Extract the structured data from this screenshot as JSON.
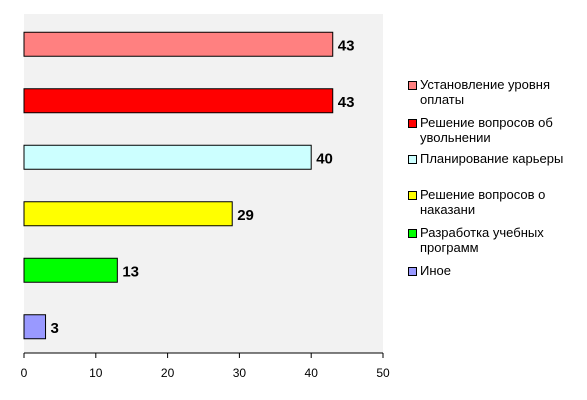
{
  "chart_data": {
    "type": "bar",
    "orientation": "horizontal",
    "categories": [
      "Установление уровня оплаты",
      "Решение вопросов об увольнении",
      "Планирование карьеры",
      "Решение вопросов о наказани",
      "Разработка учебных программ",
      "Иное"
    ],
    "values": [
      43,
      43,
      40,
      29,
      13,
      3
    ],
    "colors": [
      "#ff8080",
      "#ff0000",
      "#ccffff",
      "#ffff00",
      "#00ff00",
      "#9999ff"
    ],
    "xlim": [
      0,
      50
    ],
    "xticks": [
      0,
      10,
      20,
      30,
      40,
      50
    ],
    "grid": false,
    "legend_position": "right",
    "background": "#f2f2f2"
  }
}
